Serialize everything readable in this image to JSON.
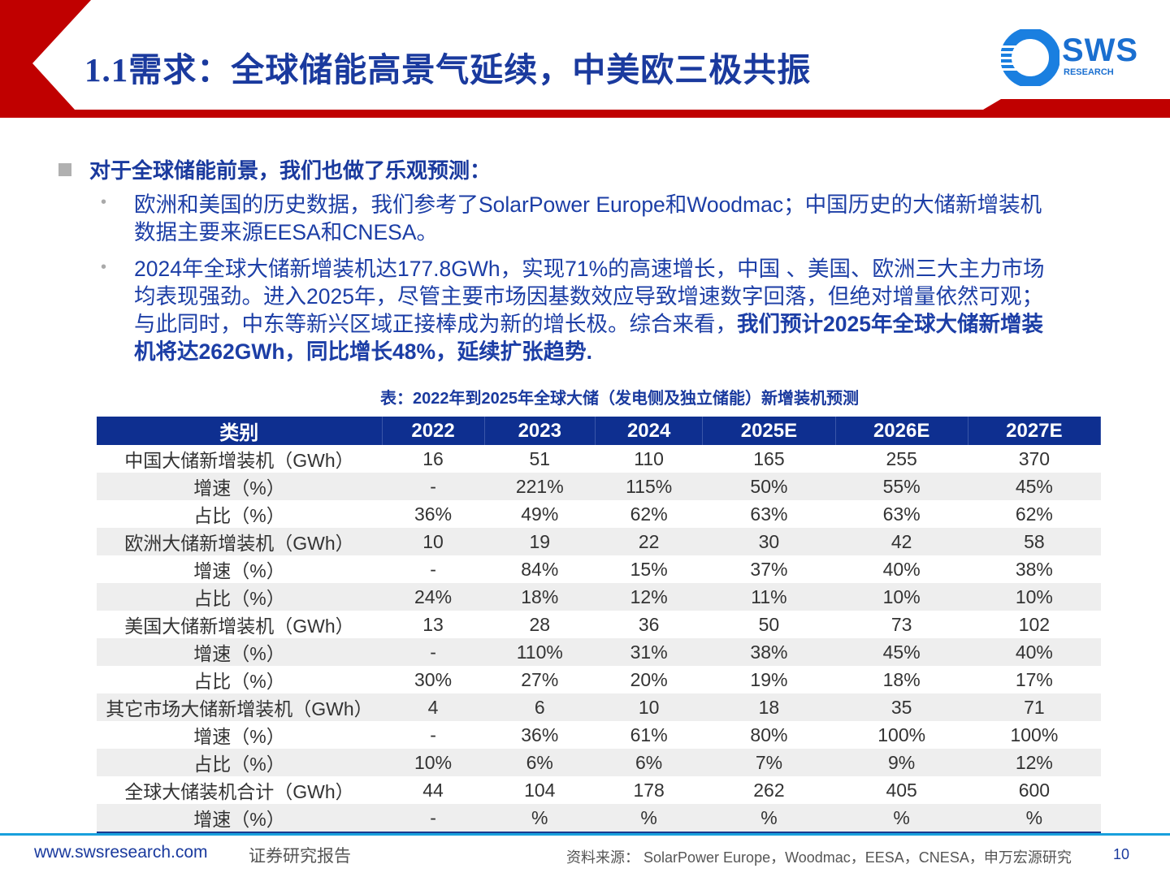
{
  "header": {
    "title": "1.1需求：全球储能高景气延续，中美欧三极共振",
    "logo_text": "SWS",
    "logo_sub": "RESEARCH",
    "accent": "#c00000",
    "title_color": "#1a3a9e"
  },
  "intro": {
    "heading": "对于全球储能前景，我们也做了乐观预测：",
    "bullets": [
      {
        "lines": [
          "欧洲和美国的历史数据，我们参考了SolarPower  Europe和Woodmac；中国历史的大储新增装机",
          "数据主要来源EESA和CNESA。"
        ]
      },
      {
        "lines": [
          "2024年全球大储新增装机达177.8GWh，实现71%的高速增长，中国 、美国、欧洲三大主力市场",
          "均表现强劲。进入2025年，尽管主要市场因基数效应导致增速数字回落，但绝对增量依然可观；",
          "与此同时，中东等新兴区域正接棒成为新的增长极。综合来看，"
        ],
        "bold_lines": [
          "我们预计2025年全球大储新增装",
          "机将达262GWh，同比增长48%，延续扩张趋势."
        ]
      }
    ]
  },
  "table": {
    "caption": "表：2022年到2025年全球大储（发电侧及独立储能）新增装机预测",
    "headers": [
      "类别",
      "2022",
      "2023",
      "2024",
      "2025E",
      "2026E",
      "2027E"
    ],
    "rows": [
      [
        "中国大储新增装机（GWh）",
        "16",
        "51",
        "110",
        "165",
        "255",
        "370"
      ],
      [
        "增速（%）",
        "-",
        "221%",
        "115%",
        "50%",
        "55%",
        "45%"
      ],
      [
        "占比（%）",
        "36%",
        "49%",
        "62%",
        "63%",
        "63%",
        "62%"
      ],
      [
        "欧洲大储新增装机（GWh）",
        "10",
        "19",
        "22",
        "30",
        "42",
        "58"
      ],
      [
        "增速（%）",
        "-",
        "84%",
        "15%",
        "37%",
        "40%",
        "38%"
      ],
      [
        "占比（%）",
        "24%",
        "18%",
        "12%",
        "11%",
        "10%",
        "10%"
      ],
      [
        "美国大储新增装机（GWh）",
        "13",
        "28",
        "36",
        "50",
        "73",
        "102"
      ],
      [
        "增速（%）",
        "-",
        "110%",
        "31%",
        "38%",
        "45%",
        "40%"
      ],
      [
        "占比（%）",
        "30%",
        "27%",
        "20%",
        "19%",
        "18%",
        "17%"
      ],
      [
        "其它市场大储新增装机（GWh）",
        "4",
        "6",
        "10",
        "18",
        "35",
        "71"
      ],
      [
        "增速（%）",
        "-",
        "36%",
        "61%",
        "80%",
        "100%",
        "100%"
      ],
      [
        "占比（%）",
        "10%",
        "6%",
        "6%",
        "7%",
        "9%",
        "12%"
      ],
      [
        "全球大储装机合计（GWh）",
        "44",
        "104",
        "178",
        "262",
        "405",
        "600"
      ],
      [
        "增速（%）",
        "-",
        "%",
        "%",
        "%",
        "%",
        "%"
      ]
    ]
  },
  "footer": {
    "website": "www.swsresearch.com",
    "report_type": "证券研究报告",
    "source": "资料来源： SolarPower Europe，Woodmac，EESA，CNESA，申万宏源研究",
    "page": "10"
  }
}
